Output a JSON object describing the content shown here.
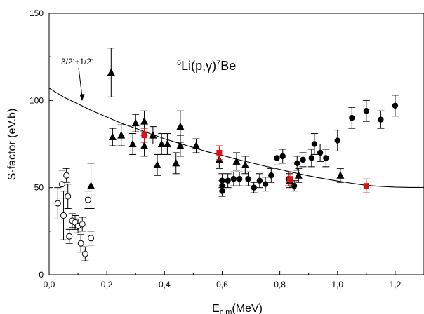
{
  "chart_data": {
    "type": "scatter",
    "title": "",
    "reaction_label": {
      "pre": "6",
      "mid": "Li(p,γ)",
      "sup2": "7",
      "post": "Be"
    },
    "curve_annotation": {
      "text_a": "3/2",
      "text_b": "+1/2"
    },
    "xlabel": {
      "main": "E",
      "sub": "c.m",
      "rest": "(MeV)"
    },
    "ylabel": "S-factor (eV.b)",
    "xlim": [
      0.0,
      1.3
    ],
    "ylim": [
      0,
      150
    ],
    "x_ticks": [
      "0,0",
      "0,2",
      "0,4",
      "0,6",
      "0,8",
      "1,0",
      "1,2"
    ],
    "x_tick_values": [
      0.0,
      0.2,
      0.4,
      0.6,
      0.8,
      1.0,
      1.2
    ],
    "y_ticks": [
      "0",
      "50",
      "100",
      "150"
    ],
    "y_tick_values": [
      0,
      50,
      100,
      150
    ],
    "grid": false,
    "colors": {
      "fit_marker": "#e01010",
      "marker": "#000000"
    },
    "curve": [
      [
        0.0,
        107
      ],
      [
        0.05,
        102
      ],
      [
        0.1,
        98
      ],
      [
        0.15,
        94
      ],
      [
        0.2,
        90.5
      ],
      [
        0.25,
        87
      ],
      [
        0.3,
        84
      ],
      [
        0.35,
        81
      ],
      [
        0.4,
        78
      ],
      [
        0.45,
        75.5
      ],
      [
        0.5,
        73
      ],
      [
        0.55,
        70.5
      ],
      [
        0.6,
        68.5
      ],
      [
        0.65,
        66.3
      ],
      [
        0.7,
        64.3
      ],
      [
        0.75,
        62.3
      ],
      [
        0.8,
        60.5
      ],
      [
        0.85,
        58.5
      ],
      [
        0.9,
        56.8
      ],
      [
        0.95,
        55.2
      ],
      [
        1.0,
        53.8
      ],
      [
        1.05,
        52.5
      ],
      [
        1.1,
        51.3
      ],
      [
        1.15,
        50.7
      ],
      [
        1.2,
        50.3
      ],
      [
        1.25,
        50.1
      ],
      [
        1.3,
        50.1
      ]
    ],
    "series": [
      {
        "marker": "triangle",
        "points": [
          {
            "x": 0.145,
            "y": 51,
            "e": 13
          },
          {
            "x": 0.215,
            "y": 116,
            "e": 14
          },
          {
            "x": 0.22,
            "y": 79,
            "e": 5
          },
          {
            "x": 0.25,
            "y": 80,
            "e": 6
          },
          {
            "x": 0.29,
            "y": 75,
            "e": 6
          },
          {
            "x": 0.3,
            "y": 87,
            "e": 5
          },
          {
            "x": 0.33,
            "y": 88,
            "e": 6
          },
          {
            "x": 0.33,
            "y": 74,
            "e": 6
          },
          {
            "x": 0.36,
            "y": 80,
            "e": 5
          },
          {
            "x": 0.375,
            "y": 63,
            "e": 6
          },
          {
            "x": 0.39,
            "y": 75,
            "e": 6
          },
          {
            "x": 0.41,
            "y": 75,
            "e": 6
          },
          {
            "x": 0.44,
            "y": 64,
            "e": 6
          },
          {
            "x": 0.455,
            "y": 85,
            "e": 9
          },
          {
            "x": 0.455,
            "y": 74,
            "e": 6
          },
          {
            "x": 0.51,
            "y": 74,
            "e": 4
          },
          {
            "x": 0.59,
            "y": 66,
            "e": 5
          },
          {
            "x": 0.65,
            "y": 65,
            "e": 5
          },
          {
            "x": 0.68,
            "y": 63,
            "e": 5
          },
          {
            "x": 0.835,
            "y": 54,
            "e": 4
          },
          {
            "x": 0.865,
            "y": 57,
            "e": 4
          },
          {
            "x": 1.01,
            "y": 57,
            "e": 4
          }
        ]
      },
      {
        "marker": "circle-filled",
        "points": [
          {
            "x": 0.6,
            "y": 48,
            "e": 3
          },
          {
            "x": 0.6,
            "y": 51,
            "e": 3
          },
          {
            "x": 0.6,
            "y": 54,
            "e": 4
          },
          {
            "x": 0.62,
            "y": 54,
            "e": 4
          },
          {
            "x": 0.64,
            "y": 55,
            "e": 4
          },
          {
            "x": 0.66,
            "y": 55,
            "e": 4
          },
          {
            "x": 0.69,
            "y": 55,
            "e": 4
          },
          {
            "x": 0.71,
            "y": 50,
            "e": 3
          },
          {
            "x": 0.73,
            "y": 54,
            "e": 4
          },
          {
            "x": 0.75,
            "y": 52,
            "e": 4
          },
          {
            "x": 0.77,
            "y": 57,
            "e": 4
          },
          {
            "x": 0.79,
            "y": 67,
            "e": 4
          },
          {
            "x": 0.81,
            "y": 68,
            "e": 4
          },
          {
            "x": 0.83,
            "y": 55,
            "e": 4
          },
          {
            "x": 0.85,
            "y": 51,
            "e": 3
          },
          {
            "x": 0.86,
            "y": 64,
            "e": 4
          },
          {
            "x": 0.88,
            "y": 66,
            "e": 4
          },
          {
            "x": 0.91,
            "y": 67,
            "e": 5
          },
          {
            "x": 0.92,
            "y": 75,
            "e": 6
          },
          {
            "x": 0.94,
            "y": 70,
            "e": 5
          },
          {
            "x": 0.96,
            "y": 67,
            "e": 5
          },
          {
            "x": 1.0,
            "y": 77,
            "e": 6
          },
          {
            "x": 1.05,
            "y": 90,
            "e": 6
          },
          {
            "x": 1.1,
            "y": 94,
            "e": 6
          },
          {
            "x": 1.15,
            "y": 89,
            "e": 5
          },
          {
            "x": 1.2,
            "y": 97,
            "e": 6
          }
        ]
      },
      {
        "marker": "circle-open",
        "points": [
          {
            "x": 0.03,
            "y": 41,
            "e": 9
          },
          {
            "x": 0.045,
            "y": 52,
            "e": 8
          },
          {
            "x": 0.05,
            "y": 34,
            "e": 14
          },
          {
            "x": 0.06,
            "y": 57,
            "e": 4
          },
          {
            "x": 0.065,
            "y": 45,
            "e": 7
          },
          {
            "x": 0.07,
            "y": 22,
            "e": 4
          },
          {
            "x": 0.08,
            "y": 31,
            "e": 4
          },
          {
            "x": 0.09,
            "y": 30,
            "e": 4
          },
          {
            "x": 0.1,
            "y": 28,
            "e": 4
          },
          {
            "x": 0.11,
            "y": 18,
            "e": 5
          },
          {
            "x": 0.115,
            "y": 29,
            "e": 4
          },
          {
            "x": 0.125,
            "y": 12,
            "e": 4
          },
          {
            "x": 0.135,
            "y": 43,
            "e": 5
          },
          {
            "x": 0.145,
            "y": 21,
            "e": 4
          }
        ]
      },
      {
        "marker": "square-red",
        "points": [
          {
            "x": 0.33,
            "y": 80,
            "e": 4
          },
          {
            "x": 0.59,
            "y": 70,
            "e": 4
          },
          {
            "x": 0.835,
            "y": 55,
            "e": 4
          },
          {
            "x": 1.1,
            "y": 51,
            "e": 4
          }
        ]
      }
    ]
  }
}
